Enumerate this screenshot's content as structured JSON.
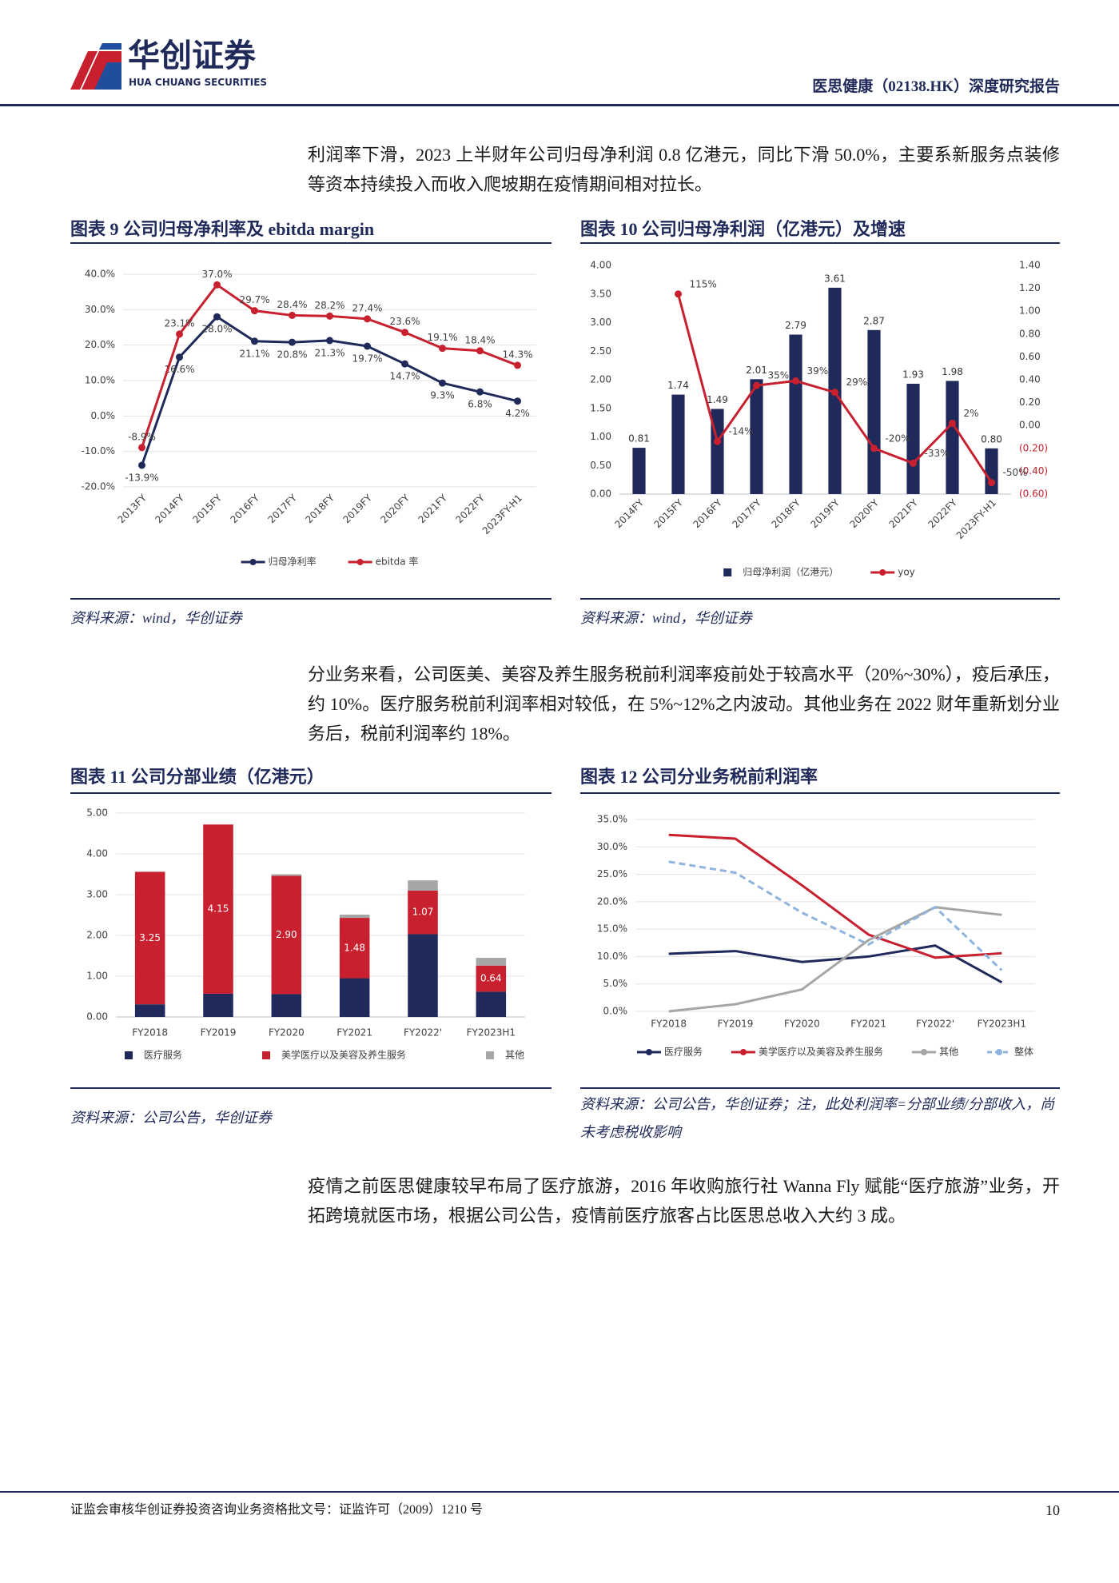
{
  "header": {
    "logo_cn": "华创证券",
    "logo_en": "HUA CHUANG SECURITIES",
    "report_title": "医思健康（02138.HK）深度研究报告"
  },
  "paragraphs": [
    "利润率下滑，2023 上半财年公司归母净利润 0.8 亿港元，同比下滑 50.0%，主要系新服务点装修等资本持续投入而收入爬坡期在疫情期间相对拉长。",
    "分业务来看，公司医美、美容及养生服务税前利润率疫前处于较高水平（20%~30%），疫后承压，约 10%。医疗服务税前利润率相对较低，在 5%~12%之内波动。其他业务在 2022 财年重新划分业务后，税前利润率约 18%。",
    "疫情之前医思健康较早布局了医疗旅游，2016 年收购旅行社 Wanna Fly 赋能“医疗旅游”业务，开拓跨境就医市场，根据公司公告，疫情前医疗旅客占比医思总收入大约 3 成。"
  ],
  "chart_data": [
    {
      "type": "line",
      "title": "图表 9   公司归母净利率及 ebitda margin",
      "source": "资料来源：wind，华创证券",
      "grid": true,
      "markers": true,
      "categories": [
        "2013FY",
        "2014FY",
        "2015FY",
        "2016FY",
        "2017FY",
        "2018FY",
        "2019FY",
        "2020FY",
        "2021FY",
        "2022FY",
        "2023FY-H1"
      ],
      "series": [
        {
          "name": "归母净利率",
          "color": "#1f2a5a",
          "values": [
            -13.9,
            16.6,
            28.0,
            21.1,
            20.8,
            21.3,
            19.7,
            14.7,
            9.3,
            6.8,
            4.2
          ],
          "value_labels": [
            "-13.9%",
            "16.6%",
            "28.0%",
            "21.1%",
            "20.8%",
            "21.3%",
            "19.7%",
            "14.7%",
            "9.3%",
            "6.8%",
            "4.2%"
          ]
        },
        {
          "name": "ebitda 率",
          "color": "#c8202e",
          "values": [
            -8.9,
            23.1,
            37.0,
            29.7,
            28.4,
            28.2,
            27.4,
            23.6,
            19.1,
            18.4,
            14.3
          ],
          "value_labels": [
            "-8.9%",
            "23.1%",
            "37.0%",
            "29.7%",
            "28.4%",
            "28.2%",
            "27.4%",
            "23.6%",
            "19.1%",
            "18.4%",
            "14.3%"
          ]
        }
      ],
      "ylim": [
        -20,
        40
      ],
      "yticks": [
        {
          "value": -20,
          "label": "-20.0%"
        },
        {
          "value": -10,
          "label": "-10.0%"
        },
        {
          "value": 0,
          "label": "0.0%"
        },
        {
          "value": 10,
          "label": "10.0%"
        },
        {
          "value": 20,
          "label": "20.0%"
        },
        {
          "value": 30,
          "label": "30.0%"
        },
        {
          "value": 40,
          "label": "40.0%"
        }
      ]
    },
    {
      "type": "bar",
      "title": "图表 10   公司归母净利润（亿港元）及增速",
      "source": "资料来源：wind，华创证券",
      "grid": false,
      "markers": true,
      "categories": [
        "2014FY",
        "2015FY",
        "2016FY",
        "2017FY",
        "2018FY",
        "2019FY",
        "2020FY",
        "2021FY",
        "2022FY",
        "2023FY-H1"
      ],
      "series": [
        {
          "name": "归母净利润（亿港元）",
          "color": "#1f2a5a",
          "values": [
            0.81,
            1.74,
            1.49,
            2.01,
            2.79,
            3.61,
            2.87,
            1.93,
            1.98,
            0.8
          ],
          "value_labels": [
            "0.81",
            "1.74",
            "1.49",
            "2.01",
            "2.79",
            "3.61",
            "2.87",
            "1.93",
            "1.98",
            "0.80"
          ]
        },
        {
          "name": "yoy",
          "type": "line",
          "axis": "y2",
          "color": "#c8202e",
          "values": [
            null,
            1.15,
            -0.14,
            0.35,
            0.39,
            0.29,
            -0.2,
            -0.33,
            0.02,
            -0.5
          ],
          "value_labels": [
            null,
            "115%",
            "-14%",
            "35%",
            "39%",
            "29%",
            "-20%",
            "-33%",
            "2%",
            "-50%"
          ]
        }
      ],
      "ylim": [
        0,
        4
      ],
      "yticks": [
        {
          "value": 0,
          "label": "0.00"
        },
        {
          "value": 0.5,
          "label": "0.50"
        },
        {
          "value": 1,
          "label": "1.00"
        },
        {
          "value": 1.5,
          "label": "1.50"
        },
        {
          "value": 2,
          "label": "2.00"
        },
        {
          "value": 2.5,
          "label": "2.50"
        },
        {
          "value": 3,
          "label": "3.00"
        },
        {
          "value": 3.5,
          "label": "3.50"
        },
        {
          "value": 4,
          "label": "4.00"
        }
      ],
      "y2lim": [
        -0.6,
        1.4
      ],
      "y2ticks": [
        {
          "value": -0.6,
          "label": "(0.60)"
        },
        {
          "value": -0.4,
          "label": "(0.40)"
        },
        {
          "value": -0.2,
          "label": "(0.20)"
        },
        {
          "value": 0,
          "label": "0.00"
        },
        {
          "value": 0.2,
          "label": "0.20"
        },
        {
          "value": 0.4,
          "label": "0.40"
        },
        {
          "value": 0.6,
          "label": "0.60"
        },
        {
          "value": 0.8,
          "label": "0.80"
        },
        {
          "value": 1,
          "label": "1.00"
        },
        {
          "value": 1.2,
          "label": "1.20"
        },
        {
          "value": 1.4,
          "label": "1.40"
        }
      ]
    },
    {
      "type": "bar",
      "stacked": true,
      "title": "图表 11   公司分部业绩（亿港元）",
      "source": "资料来源：公司公告，华创证券",
      "grid": true,
      "categories": [
        "FY2018",
        "FY2019",
        "FY2020",
        "FY2021",
        "FY2022'",
        "FY2023H1"
      ],
      "series": [
        {
          "name": "医疗服务",
          "color": "#1f2a5a",
          "values": [
            0.31,
            0.57,
            0.56,
            0.95,
            2.03,
            0.62
          ]
        },
        {
          "name": "美学医疗以及美容及养生服务",
          "color": "#c8202e",
          "values": [
            3.25,
            4.15,
            2.9,
            1.48,
            1.07,
            0.64
          ],
          "value_labels": [
            "3.25",
            "4.15",
            "2.90",
            "1.48",
            "1.07",
            "0.64"
          ]
        },
        {
          "name": "其他",
          "color": "#a6a6a6",
          "values": [
            0,
            0,
            0.04,
            0.08,
            0.25,
            0.19
          ]
        }
      ],
      "ylim": [
        0,
        5
      ],
      "yticks": [
        {
          "value": 0,
          "label": "0.00"
        },
        {
          "value": 1,
          "label": "1.00"
        },
        {
          "value": 2,
          "label": "2.00"
        },
        {
          "value": 3,
          "label": "3.00"
        },
        {
          "value": 4,
          "label": "4.00"
        },
        {
          "value": 5,
          "label": "5.00"
        }
      ]
    },
    {
      "type": "line",
      "title": "图表 12   公司分业务税前利润率",
      "source": "资料来源：公司公告，华创证券；注，此处利润率=分部业绩/分部收入，尚未考虑税收影响",
      "grid": true,
      "markers": false,
      "categories": [
        "FY2018",
        "FY2019",
        "FY2020",
        "FY2021",
        "FY2022'",
        "FY2023H1"
      ],
      "series": [
        {
          "name": "医疗服务",
          "color": "#1f2a5a",
          "values": [
            10.5,
            11.0,
            9.0,
            10.0,
            12.0,
            5.3
          ]
        },
        {
          "name": "美学医疗以及美容及养生服务",
          "color": "#c8202e",
          "values": [
            32.2,
            31.5,
            23.0,
            14.0,
            9.8,
            10.6
          ]
        },
        {
          "name": "其他",
          "color": "#a6a6a6",
          "values": [
            0,
            1.3,
            4.0,
            13.0,
            19.0,
            17.6
          ]
        },
        {
          "name": "整体",
          "color": "#8fb4de",
          "dash": true,
          "values": [
            27.3,
            25.3,
            18.0,
            12.2,
            19.0,
            7.5
          ]
        }
      ],
      "ylim": [
        0,
        35
      ],
      "yticks": [
        {
          "value": 0,
          "label": "0.0%"
        },
        {
          "value": 5,
          "label": "5.0%"
        },
        {
          "value": 10,
          "label": "10.0%"
        },
        {
          "value": 15,
          "label": "15.0%"
        },
        {
          "value": 20,
          "label": "20.0%"
        },
        {
          "value": 25,
          "label": "25.0%"
        },
        {
          "value": 30,
          "label": "30.0%"
        },
        {
          "value": 35,
          "label": "35.0%"
        }
      ]
    }
  ],
  "footer": {
    "text": "证监会审核华创证券投资咨询业务资格批文号：证监许可（2009）1210 号",
    "page": 10
  }
}
